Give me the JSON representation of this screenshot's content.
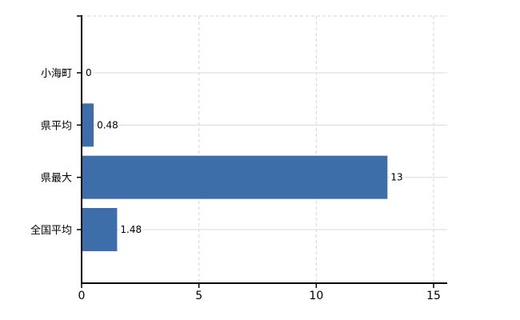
{
  "chart_data": {
    "type": "bar",
    "orientation": "horizontal",
    "title": "",
    "xlabel": "",
    "ylabel": "",
    "categories": [
      "小海町",
      "県平均",
      "県最大",
      "全国平均"
    ],
    "values": [
      0,
      0.48,
      13,
      1.48
    ],
    "value_labels": [
      "0",
      "0.48",
      "13",
      "1.48"
    ],
    "x_ticks": [
      0,
      5,
      10,
      15
    ],
    "x_tick_labels": [
      "0",
      "5",
      "10",
      "15"
    ],
    "xlim": [
      0,
      15.6
    ],
    "grid": true,
    "legend": false,
    "colors": {
      "bar": "#3e6eaa",
      "axis": "#000000",
      "gridline_horizontal": "#d9dcd6",
      "gridline_vertical": "#d8d3d7",
      "top_border": "#d6d6d6",
      "background": "#ffffff",
      "text": "#000000"
    }
  }
}
